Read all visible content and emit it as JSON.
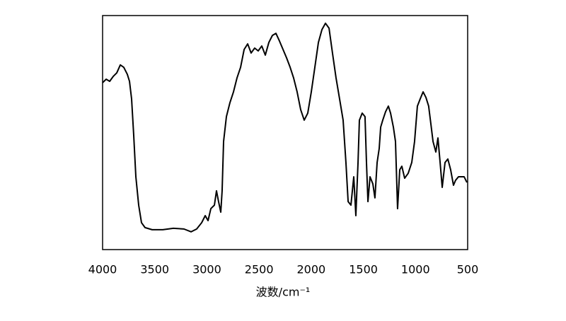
{
  "chart_data": {
    "type": "line",
    "x_label": "波数/cm⁻¹",
    "xlim": [
      4000,
      500
    ],
    "ylim": [
      0,
      100
    ],
    "xticks": [
      4000,
      3500,
      3000,
      2500,
      2000,
      1500,
      1000,
      500
    ],
    "color": "#000000",
    "grid": false,
    "series": [
      {
        "color": "#000000",
        "x": [
          4000,
          3966,
          3932,
          3898,
          3864,
          3830,
          3797,
          3763,
          3742,
          3722,
          3702,
          3681,
          3654,
          3627,
          3593,
          3525,
          3423,
          3322,
          3220,
          3152,
          3098,
          3050,
          3016,
          2989,
          2962,
          2928,
          2908,
          2888,
          2867,
          2854,
          2840,
          2813,
          2779,
          2745,
          2711,
          2677,
          2643,
          2609,
          2576,
          2542,
          2508,
          2474,
          2440,
          2406,
          2372,
          2338,
          2304,
          2270,
          2236,
          2202,
          2169,
          2135,
          2101,
          2067,
          2033,
          1999,
          1965,
          1931,
          1897,
          1863,
          1829,
          1796,
          1762,
          1728,
          1694,
          1667,
          1646,
          1619,
          1592,
          1572,
          1551,
          1538,
          1511,
          1484,
          1470,
          1456,
          1436,
          1409,
          1389,
          1368,
          1348,
          1334,
          1314,
          1287,
          1260,
          1239,
          1212,
          1192,
          1172,
          1151,
          1131,
          1104,
          1070,
          1036,
          1009,
          982,
          955,
          927,
          900,
          874,
          853,
          832,
          805,
          785,
          764,
          744,
          717,
          690,
          663,
          636,
          616,
          588,
          561,
          534,
          507
        ],
        "values": [
          71.3,
          72.8,
          71.9,
          74.0,
          75.5,
          78.9,
          77.9,
          74.9,
          71.9,
          64.4,
          49.2,
          31.1,
          19.0,
          11.5,
          9.4,
          8.5,
          8.5,
          9.1,
          8.8,
          7.6,
          8.8,
          11.5,
          14.5,
          12.4,
          17.5,
          19.0,
          25.1,
          20.5,
          16.0,
          25.1,
          46.2,
          56.8,
          62.8,
          67.4,
          73.4,
          77.9,
          85.5,
          87.9,
          84.0,
          86.1,
          84.9,
          87.0,
          83.1,
          88.5,
          91.5,
          92.4,
          89.1,
          85.5,
          81.9,
          77.9,
          73.4,
          67.4,
          59.8,
          55.3,
          58.3,
          67.4,
          77.9,
          88.5,
          94.0,
          96.7,
          94.6,
          84.0,
          73.4,
          64.4,
          55.3,
          37.2,
          20.5,
          19.0,
          31.1,
          14.5,
          37.2,
          55.3,
          58.3,
          56.8,
          37.2,
          20.5,
          31.1,
          28.1,
          22.1,
          37.2,
          43.2,
          52.3,
          55.3,
          58.9,
          61.3,
          58.3,
          52.3,
          46.2,
          17.5,
          34.1,
          35.6,
          30.5,
          32.6,
          37.2,
          46.2,
          61.3,
          64.4,
          67.4,
          65.0,
          61.3,
          53.8,
          46.2,
          41.7,
          47.7,
          37.2,
          26.6,
          37.2,
          38.7,
          34.1,
          27.5,
          29.6,
          31.1,
          31.1,
          31.1,
          28.7
        ]
      }
    ]
  }
}
